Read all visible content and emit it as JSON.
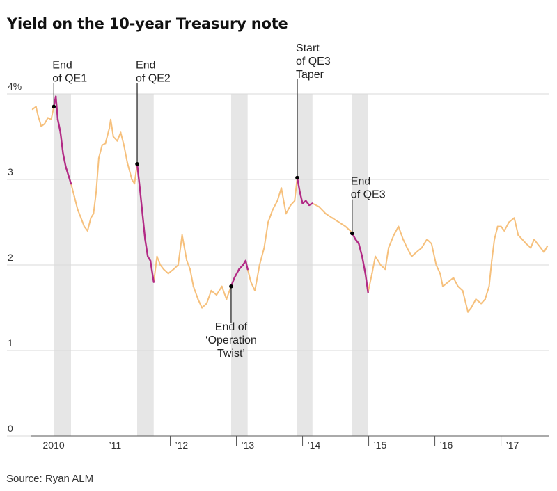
{
  "title": "Yield on the 10-year Treasury note",
  "source": "Source: Ryan ALM",
  "colors": {
    "line": "#F6C07C",
    "highlight": "#B22A86",
    "shade": "#E6E6E6",
    "grid": "#D9D9D9",
    "axis": "#555555",
    "annotation": "#1a1a1a"
  },
  "chart_data": {
    "type": "line",
    "title": "Yield on the 10-year Treasury note",
    "xlabel": "",
    "ylabel": "",
    "xlim": [
      2009.9,
      2017.72
    ],
    "ylim": [
      0,
      4
    ],
    "yticks": [
      {
        "value": 0,
        "label": "0"
      },
      {
        "value": 1,
        "label": "1"
      },
      {
        "value": 2,
        "label": "2"
      },
      {
        "value": 3,
        "label": "3"
      },
      {
        "value": 4,
        "label": "4%"
      }
    ],
    "xticks": [
      {
        "value": 2010,
        "label": "2010"
      },
      {
        "value": 2011,
        "label": "’11"
      },
      {
        "value": 2012,
        "label": "’12"
      },
      {
        "value": 2013,
        "label": "’13"
      },
      {
        "value": 2014,
        "label": "’14"
      },
      {
        "value": 2015,
        "label": "’15"
      },
      {
        "value": 2016,
        "label": "’16"
      },
      {
        "value": 2017,
        "label": "’17"
      }
    ],
    "shaded_periods": [
      {
        "start": 2010.24,
        "end": 2010.5
      },
      {
        "start": 2011.5,
        "end": 2011.75
      },
      {
        "start": 2012.92,
        "end": 2013.17
      },
      {
        "start": 2013.92,
        "end": 2014.15
      },
      {
        "start": 2014.75,
        "end": 2014.99
      }
    ],
    "series": [
      {
        "name": "10-year Treasury yield",
        "points": [
          [
            2009.92,
            3.82
          ],
          [
            2009.97,
            3.85
          ],
          [
            2010.0,
            3.75
          ],
          [
            2010.05,
            3.62
          ],
          [
            2010.1,
            3.65
          ],
          [
            2010.15,
            3.72
          ],
          [
            2010.2,
            3.7
          ],
          [
            2010.24,
            3.85
          ],
          [
            2010.27,
            3.97
          ],
          [
            2010.3,
            3.7
          ],
          [
            2010.34,
            3.55
          ],
          [
            2010.38,
            3.3
          ],
          [
            2010.42,
            3.15
          ],
          [
            2010.46,
            3.05
          ],
          [
            2010.5,
            2.95
          ],
          [
            2010.55,
            2.8
          ],
          [
            2010.6,
            2.65
          ],
          [
            2010.65,
            2.55
          ],
          [
            2010.7,
            2.45
          ],
          [
            2010.75,
            2.4
          ],
          [
            2010.8,
            2.55
          ],
          [
            2010.84,
            2.6
          ],
          [
            2010.88,
            2.85
          ],
          [
            2010.92,
            3.25
          ],
          [
            2010.97,
            3.4
          ],
          [
            2011.02,
            3.42
          ],
          [
            2011.08,
            3.6
          ],
          [
            2011.1,
            3.7
          ],
          [
            2011.14,
            3.5
          ],
          [
            2011.2,
            3.45
          ],
          [
            2011.25,
            3.55
          ],
          [
            2011.3,
            3.4
          ],
          [
            2011.35,
            3.2
          ],
          [
            2011.42,
            3.0
          ],
          [
            2011.46,
            2.95
          ],
          [
            2011.5,
            3.18
          ],
          [
            2011.54,
            2.9
          ],
          [
            2011.58,
            2.6
          ],
          [
            2011.62,
            2.3
          ],
          [
            2011.66,
            2.1
          ],
          [
            2011.7,
            2.05
          ],
          [
            2011.75,
            1.8
          ],
          [
            2011.8,
            2.1
          ],
          [
            2011.85,
            2.0
          ],
          [
            2011.9,
            1.95
          ],
          [
            2011.97,
            1.9
          ],
          [
            2012.05,
            1.95
          ],
          [
            2012.12,
            2.0
          ],
          [
            2012.18,
            2.35
          ],
          [
            2012.25,
            2.05
          ],
          [
            2012.3,
            1.95
          ],
          [
            2012.35,
            1.75
          ],
          [
            2012.42,
            1.6
          ],
          [
            2012.48,
            1.5
          ],
          [
            2012.55,
            1.55
          ],
          [
            2012.62,
            1.7
          ],
          [
            2012.7,
            1.65
          ],
          [
            2012.78,
            1.75
          ],
          [
            2012.85,
            1.6
          ],
          [
            2012.92,
            1.75
          ],
          [
            2012.97,
            1.85
          ],
          [
            2013.04,
            1.95
          ],
          [
            2013.1,
            2.0
          ],
          [
            2013.14,
            2.05
          ],
          [
            2013.17,
            1.95
          ],
          [
            2013.22,
            1.8
          ],
          [
            2013.28,
            1.7
          ],
          [
            2013.35,
            2.0
          ],
          [
            2013.42,
            2.2
          ],
          [
            2013.48,
            2.5
          ],
          [
            2013.55,
            2.65
          ],
          [
            2013.62,
            2.75
          ],
          [
            2013.68,
            2.9
          ],
          [
            2013.75,
            2.6
          ],
          [
            2013.82,
            2.7
          ],
          [
            2013.88,
            2.75
          ],
          [
            2013.92,
            3.02
          ],
          [
            2013.96,
            2.85
          ],
          [
            2014.0,
            2.72
          ],
          [
            2014.05,
            2.75
          ],
          [
            2014.1,
            2.7
          ],
          [
            2014.15,
            2.72
          ],
          [
            2014.25,
            2.68
          ],
          [
            2014.35,
            2.6
          ],
          [
            2014.45,
            2.55
          ],
          [
            2014.55,
            2.5
          ],
          [
            2014.65,
            2.45
          ],
          [
            2014.72,
            2.4
          ],
          [
            2014.75,
            2.37
          ],
          [
            2014.8,
            2.3
          ],
          [
            2014.85,
            2.25
          ],
          [
            2014.9,
            2.1
          ],
          [
            2014.95,
            1.9
          ],
          [
            2014.99,
            1.68
          ],
          [
            2015.05,
            1.9
          ],
          [
            2015.1,
            2.1
          ],
          [
            2015.18,
            2.0
          ],
          [
            2015.25,
            1.95
          ],
          [
            2015.3,
            2.2
          ],
          [
            2015.38,
            2.35
          ],
          [
            2015.45,
            2.45
          ],
          [
            2015.52,
            2.3
          ],
          [
            2015.58,
            2.2
          ],
          [
            2015.65,
            2.1
          ],
          [
            2015.72,
            2.15
          ],
          [
            2015.8,
            2.2
          ],
          [
            2015.88,
            2.3
          ],
          [
            2015.95,
            2.25
          ],
          [
            2016.02,
            2.0
          ],
          [
            2016.08,
            1.9
          ],
          [
            2016.12,
            1.75
          ],
          [
            2016.2,
            1.8
          ],
          [
            2016.28,
            1.85
          ],
          [
            2016.35,
            1.75
          ],
          [
            2016.42,
            1.7
          ],
          [
            2016.5,
            1.45
          ],
          [
            2016.55,
            1.5
          ],
          [
            2016.62,
            1.6
          ],
          [
            2016.7,
            1.55
          ],
          [
            2016.76,
            1.6
          ],
          [
            2016.82,
            1.75
          ],
          [
            2016.86,
            2.05
          ],
          [
            2016.9,
            2.3
          ],
          [
            2016.95,
            2.45
          ],
          [
            2017.0,
            2.45
          ],
          [
            2017.05,
            2.4
          ],
          [
            2017.12,
            2.5
          ],
          [
            2017.2,
            2.55
          ],
          [
            2017.26,
            2.35
          ],
          [
            2017.32,
            2.3
          ],
          [
            2017.38,
            2.25
          ],
          [
            2017.45,
            2.2
          ],
          [
            2017.5,
            2.3
          ],
          [
            2017.55,
            2.25
          ],
          [
            2017.6,
            2.2
          ],
          [
            2017.65,
            2.15
          ],
          [
            2017.7,
            2.22
          ]
        ]
      }
    ],
    "annotations": [
      {
        "lines": [
          "End",
          "of QE1"
        ],
        "x": 2010.24,
        "y": 3.85,
        "text_y": 4.33,
        "anchor": "start"
      },
      {
        "lines": [
          "End",
          "of QE2"
        ],
        "x": 2011.5,
        "y": 3.18,
        "text_y": 4.33,
        "anchor": "start"
      },
      {
        "lines": [
          "End of",
          "‘Operation",
          "Twist’"
        ],
        "x": 2012.92,
        "y": 1.75,
        "text_y": 1.27,
        "anchor": "middle",
        "below": true
      },
      {
        "lines": [
          "Start",
          "of QE3",
          "Taper"
        ],
        "x": 2013.92,
        "y": 3.02,
        "text_y": 4.53,
        "anchor": "start"
      },
      {
        "lines": [
          "End",
          "of QE3"
        ],
        "x": 2014.75,
        "y": 2.37,
        "text_y": 2.97,
        "anchor": "start"
      }
    ]
  }
}
